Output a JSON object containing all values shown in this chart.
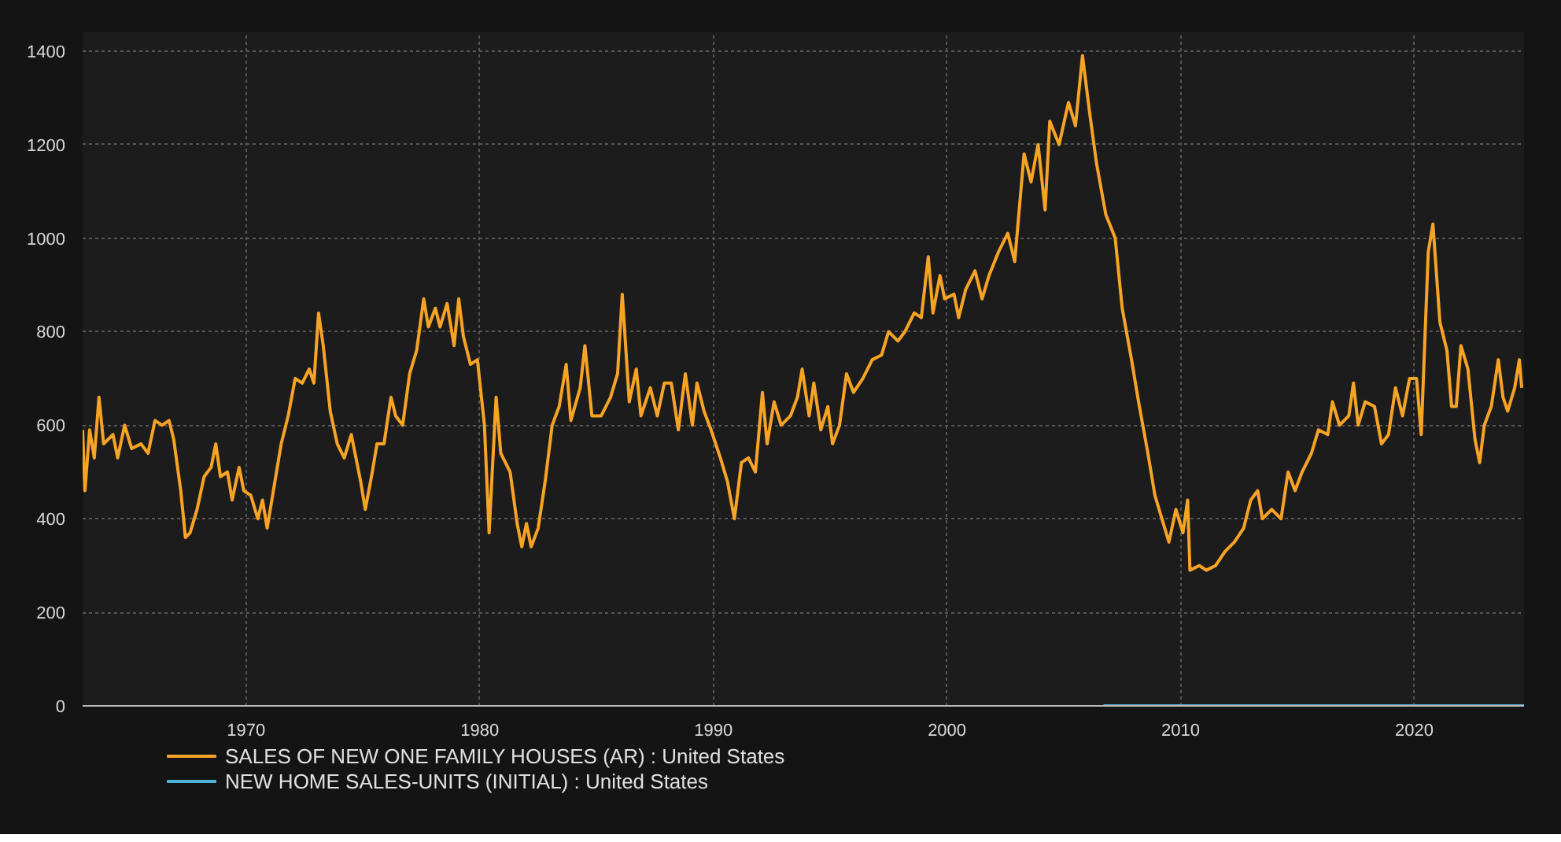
{
  "chart_data": {
    "type": "line",
    "xlim": [
      1963,
      2024.7
    ],
    "ylim": [
      0,
      1440
    ],
    "xticks": [
      1970,
      1980,
      1990,
      2000,
      2010,
      2020
    ],
    "yticks": [
      0,
      200,
      400,
      600,
      800,
      1000,
      1200,
      1400
    ],
    "grid": true,
    "legend": "bottom",
    "marker": "none",
    "line_style": "solid",
    "series": [
      {
        "name": "SALES OF NEW ONE FAMILY HOUSES (AR) : United States",
        "color": "#f7a325",
        "x": [
          1963.0,
          1963.1,
          1963.3,
          1963.5,
          1963.7,
          1963.9,
          1964.3,
          1964.5,
          1964.8,
          1965.1,
          1965.5,
          1965.8,
          1966.1,
          1966.4,
          1966.7,
          1966.9,
          1967.2,
          1967.4,
          1967.6,
          1967.9,
          1968.2,
          1968.5,
          1968.7,
          1968.9,
          1969.2,
          1969.4,
          1969.7,
          1969.9,
          1970.2,
          1970.5,
          1970.7,
          1970.9,
          1971.2,
          1971.5,
          1971.8,
          1972.1,
          1972.4,
          1972.7,
          1972.9,
          1973.1,
          1973.3,
          1973.6,
          1973.9,
          1974.2,
          1974.5,
          1974.9,
          1975.1,
          1975.4,
          1975.6,
          1975.9,
          1976.2,
          1976.4,
          1976.7,
          1977.0,
          1977.3,
          1977.6,
          1977.8,
          1978.1,
          1978.3,
          1978.6,
          1978.9,
          1979.1,
          1979.3,
          1979.6,
          1979.9,
          1980.2,
          1980.4,
          1980.7,
          1980.9,
          1981.3,
          1981.6,
          1981.8,
          1982.0,
          1982.2,
          1982.5,
          1982.8,
          1983.1,
          1983.4,
          1983.7,
          1983.9,
          1984.3,
          1984.5,
          1984.8,
          1985.2,
          1985.6,
          1985.9,
          1986.1,
          1986.4,
          1986.7,
          1986.9,
          1987.3,
          1987.6,
          1987.9,
          1988.2,
          1988.5,
          1988.8,
          1989.1,
          1989.3,
          1989.6,
          1989.9,
          1990.3,
          1990.6,
          1990.9,
          1991.2,
          1991.5,
          1991.8,
          1992.1,
          1992.3,
          1992.6,
          1992.9,
          1993.3,
          1993.6,
          1993.8,
          1994.1,
          1994.3,
          1994.6,
          1994.9,
          1995.1,
          1995.4,
          1995.7,
          1996.0,
          1996.4,
          1996.8,
          1997.2,
          1997.5,
          1997.9,
          1998.2,
          1998.6,
          1998.9,
          1999.2,
          1999.4,
          1999.7,
          1999.9,
          2000.3,
          2000.5,
          2000.8,
          2001.2,
          2001.5,
          2001.8,
          2002.2,
          2002.6,
          2002.9,
          2003.3,
          2003.6,
          2003.9,
          2004.2,
          2004.4,
          2004.8,
          2005.2,
          2005.5,
          2005.8,
          2006.1,
          2006.4,
          2006.8,
          2007.2,
          2007.5,
          2007.9,
          2008.2,
          2008.6,
          2008.9,
          2009.2,
          2009.5,
          2009.8,
          2010.1,
          2010.3,
          2010.4,
          2010.8,
          2011.1,
          2011.5,
          2011.9,
          2012.3,
          2012.7,
          2013.0,
          2013.3,
          2013.5,
          2013.9,
          2014.3,
          2014.6,
          2014.9,
          2015.2,
          2015.6,
          2015.9,
          2016.3,
          2016.5,
          2016.8,
          2017.2,
          2017.4,
          2017.6,
          2017.9,
          2018.3,
          2018.6,
          2018.9,
          2019.2,
          2019.5,
          2019.8,
          2020.1,
          2020.3,
          2020.6,
          2020.8,
          2021.1,
          2021.4,
          2021.6,
          2021.8,
          2022.0,
          2022.3,
          2022.6,
          2022.8,
          2023.0,
          2023.3,
          2023.6,
          2023.8,
          2024.0,
          2024.3,
          2024.5,
          2024.6
        ],
        "values": [
          590,
          460,
          590,
          530,
          660,
          560,
          580,
          530,
          600,
          550,
          560,
          540,
          610,
          600,
          610,
          570,
          460,
          360,
          370,
          420,
          490,
          510,
          560,
          490,
          500,
          440,
          510,
          460,
          450,
          400,
          440,
          380,
          470,
          560,
          620,
          700,
          690,
          720,
          690,
          840,
          770,
          630,
          560,
          530,
          580,
          480,
          420,
          500,
          560,
          560,
          660,
          620,
          600,
          710,
          760,
          870,
          810,
          850,
          810,
          860,
          770,
          870,
          790,
          730,
          740,
          600,
          370,
          660,
          540,
          500,
          390,
          340,
          390,
          340,
          380,
          480,
          600,
          640,
          730,
          610,
          680,
          770,
          620,
          620,
          660,
          710,
          880,
          650,
          720,
          620,
          680,
          620,
          690,
          690,
          590,
          710,
          600,
          690,
          630,
          590,
          530,
          480,
          400,
          520,
          530,
          500,
          670,
          560,
          650,
          600,
          620,
          660,
          720,
          620,
          690,
          590,
          640,
          560,
          600,
          710,
          670,
          700,
          740,
          750,
          800,
          780,
          800,
          840,
          830,
          960,
          840,
          920,
          870,
          880,
          830,
          890,
          930,
          870,
          920,
          970,
          1010,
          950,
          1180,
          1120,
          1200,
          1060,
          1250,
          1200,
          1290,
          1240,
          1390,
          1270,
          1160,
          1050,
          1000,
          850,
          740,
          650,
          540,
          450,
          400,
          350,
          420,
          370,
          440,
          290,
          300,
          290,
          300,
          330,
          350,
          380,
          440,
          460,
          400,
          420,
          400,
          500,
          460,
          500,
          540,
          590,
          580,
          650,
          600,
          620,
          690,
          600,
          650,
          640,
          560,
          580,
          680,
          620,
          700,
          700,
          580,
          970,
          1030,
          820,
          760,
          640,
          640,
          770,
          720,
          570,
          520,
          600,
          640,
          740,
          660,
          630,
          680,
          740,
          680
        ]
      },
      {
        "name": "NEW HOME SALES-UNITS (INITIAL) : United States",
        "color": "#4fb3d9",
        "x": [
          2006.7,
          2024.7
        ],
        "values": [
          0,
          0
        ]
      }
    ]
  }
}
